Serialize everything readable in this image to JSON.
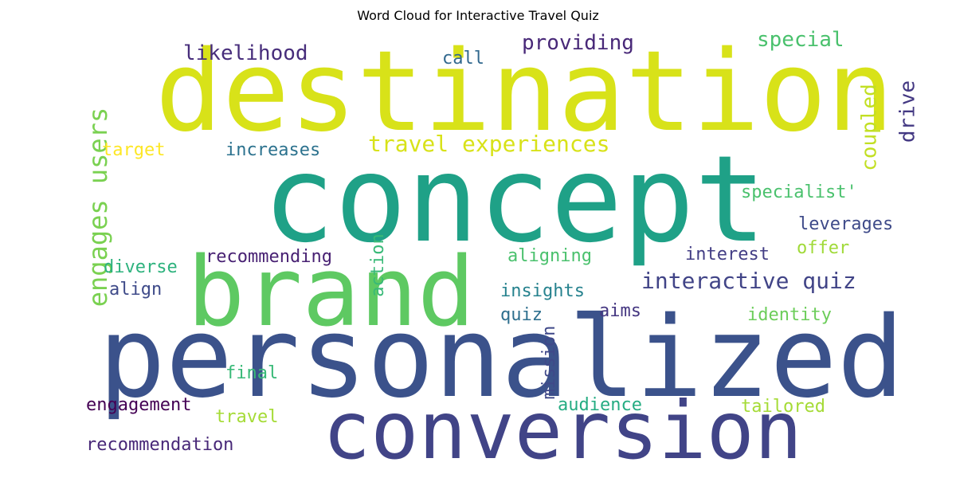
{
  "chart_data": {
    "type": "wordcloud",
    "title": "Word Cloud for Interactive Travel Quiz",
    "words": [
      {
        "text": "destination",
        "color": "#d8e219"
      },
      {
        "text": "concept",
        "color": "#1fa187"
      },
      {
        "text": "brand",
        "color": "#5ec962"
      },
      {
        "text": "personalized",
        "color": "#3b528b"
      },
      {
        "text": "conversion",
        "color": "#414487"
      },
      {
        "text": "likelihood",
        "color": "#472d7b"
      },
      {
        "text": "call",
        "color": "#31688e"
      },
      {
        "text": "providing",
        "color": "#482878"
      },
      {
        "text": "special",
        "color": "#4ac16d"
      },
      {
        "text": "drive",
        "color": "#443983"
      },
      {
        "text": "coupled",
        "color": "#c2df23"
      },
      {
        "text": "engages users",
        "color": "#7ad151"
      },
      {
        "text": "target",
        "color": "#fde725"
      },
      {
        "text": "increases",
        "color": "#2c728e"
      },
      {
        "text": "travel experiences",
        "color": "#d8e219"
      },
      {
        "text": "specialist'",
        "color": "#4ac16d"
      },
      {
        "text": "leverages",
        "color": "#3e4a89"
      },
      {
        "text": "offer",
        "color": "#a0da39"
      },
      {
        "text": "interest",
        "color": "#433e85"
      },
      {
        "text": "aligning",
        "color": "#4ac16d"
      },
      {
        "text": "recommending",
        "color": "#482173"
      },
      {
        "text": "diverse",
        "color": "#2db27d"
      },
      {
        "text": "action",
        "color": "#38b977"
      },
      {
        "text": "align",
        "color": "#3e4a89"
      },
      {
        "text": "interactive quiz",
        "color": "#414487"
      },
      {
        "text": "insights",
        "color": "#26828e"
      },
      {
        "text": "quiz",
        "color": "#2e6f8e"
      },
      {
        "text": "aims",
        "color": "#453781"
      },
      {
        "text": "identity",
        "color": "#6ccd5a"
      },
      {
        "text": "mission",
        "color": "#3f4889"
      },
      {
        "text": "final",
        "color": "#38b977"
      },
      {
        "text": "engagement",
        "color": "#440154"
      },
      {
        "text": "audience",
        "color": "#25ac82"
      },
      {
        "text": "tailored",
        "color": "#a5db36"
      },
      {
        "text": "travel",
        "color": "#a5db36"
      },
      {
        "text": "recommendation",
        "color": "#482878"
      }
    ]
  }
}
